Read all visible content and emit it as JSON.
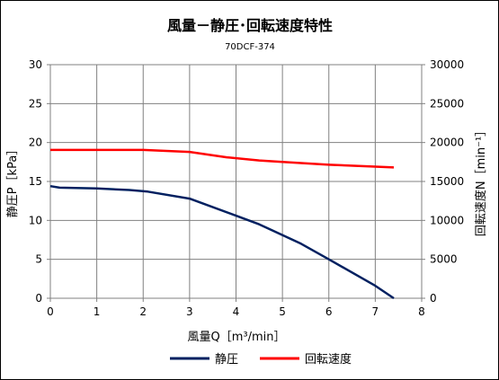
{
  "chart_data": {
    "type": "line",
    "title": "風量－静圧･回転速度特性",
    "subtitle": "70DCF-374",
    "xlabel": "風量Q［m³/min］",
    "ylabel_left": "静圧P［kPa］",
    "ylabel_right": "回転速度N［min⁻¹］",
    "xlim": [
      0,
      8
    ],
    "ylim_left": [
      0,
      30
    ],
    "ylim_right": [
      0,
      30000
    ],
    "x_ticks": [
      "0",
      "1",
      "2",
      "3",
      "4",
      "5",
      "6",
      "7",
      "8"
    ],
    "y_left_ticks": [
      "0",
      "5",
      "10",
      "15",
      "20",
      "25",
      "30"
    ],
    "y_right_ticks": [
      "0",
      "5000",
      "10000",
      "15000",
      "20000",
      "25000",
      "30000"
    ],
    "grid": true,
    "legend_position": "bottom",
    "series": [
      {
        "name": "静圧",
        "axis": "left",
        "color": "#002060",
        "points": [
          [
            0,
            14.4
          ],
          [
            0.2,
            14.2
          ],
          [
            1.0,
            14.1
          ],
          [
            1.7,
            13.9
          ],
          [
            2.1,
            13.7
          ],
          [
            3.0,
            12.8
          ],
          [
            4.0,
            10.6
          ],
          [
            4.5,
            9.5
          ],
          [
            5.4,
            7.0
          ],
          [
            6.0,
            5.0
          ],
          [
            7.0,
            1.6
          ],
          [
            7.4,
            0
          ]
        ]
      },
      {
        "name": "回転速度",
        "axis": "right",
        "color": "#ff0000",
        "points": [
          [
            0,
            19050
          ],
          [
            1.0,
            19050
          ],
          [
            2.0,
            19050
          ],
          [
            3.0,
            18800
          ],
          [
            3.8,
            18100
          ],
          [
            4.5,
            17700
          ],
          [
            5.0,
            17500
          ],
          [
            6.0,
            17150
          ],
          [
            7.0,
            16900
          ],
          [
            7.4,
            16800
          ]
        ]
      }
    ]
  }
}
